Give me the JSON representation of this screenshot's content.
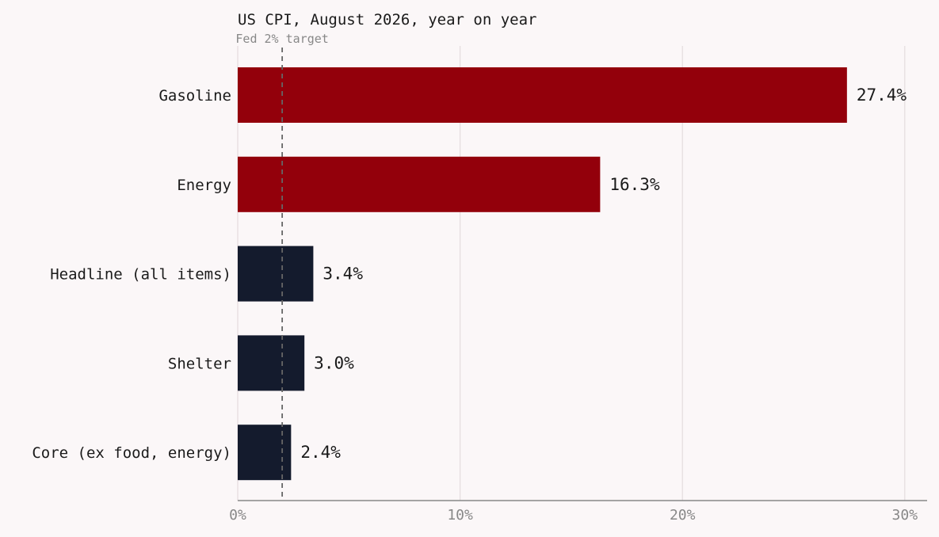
{
  "chart_data": {
    "type": "bar",
    "orientation": "horizontal",
    "title": "US CPI, August 2026, year on year",
    "categories": [
      "Gasoline",
      "Energy",
      "Headline (all items)",
      "Shelter",
      "Core (ex food, energy)"
    ],
    "values": [
      27.4,
      16.3,
      3.4,
      3.0,
      2.4
    ],
    "value_labels": [
      "27.4%",
      "16.3%",
      "3.4%",
      "3.0%",
      "2.4%"
    ],
    "xlim": [
      0,
      31
    ],
    "x_ticks": [
      0,
      10,
      20,
      30
    ],
    "x_tick_labels": [
      "0%",
      "10%",
      "20%",
      "30%"
    ],
    "xlabel": "",
    "ylabel": "",
    "grid": "vertical",
    "reference_line": {
      "value": 2,
      "label": "Fed 2% target",
      "style": "dashed"
    }
  },
  "colors": {
    "background": "#fbf7f8",
    "highlight_bar": "#93000b",
    "base_bar": "#141b2d",
    "grid": "#e4dcde",
    "axis": "#888888",
    "text": "#1a1a1a",
    "muted_text": "#888888",
    "reference_line": "#666666"
  }
}
